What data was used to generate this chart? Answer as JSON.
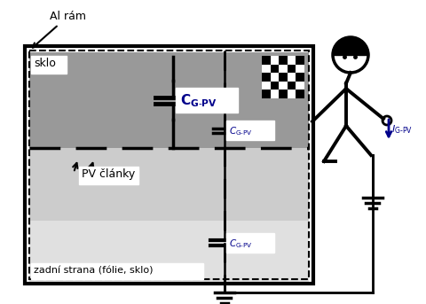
{
  "fig_width": 4.81,
  "fig_height": 3.43,
  "dpi": 100,
  "bg_color": "#ffffff",
  "outer_frame_color": "#000000",
  "outer_frame_lw": 3,
  "glass_color": "#999999",
  "pv_color": "#cccccc",
  "back_color": "#e0e0e0",
  "label_al_ram": "Al rám",
  "label_sklo": "sklo",
  "label_pv": "PV články",
  "label_zadni": "zadní strana (fólie, sklo)"
}
